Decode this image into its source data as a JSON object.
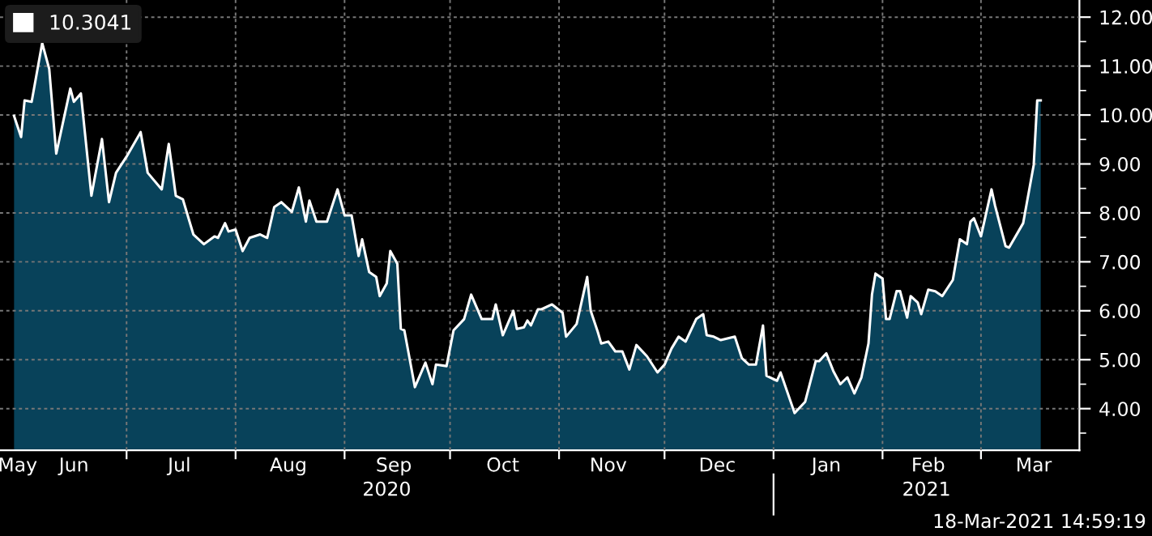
{
  "chart_data": {
    "type": "area",
    "x": [
      "2020-05-30",
      "2020-06-01",
      "2020-06-02",
      "2020-06-04",
      "2020-06-07",
      "2020-06-09",
      "2020-06-11",
      "2020-06-15",
      "2020-06-16",
      "2020-06-18",
      "2020-06-21",
      "2020-06-24",
      "2020-06-26",
      "2020-06-28",
      "2020-07-01",
      "2020-07-05",
      "2020-07-07",
      "2020-07-11",
      "2020-07-13",
      "2020-07-15",
      "2020-07-17",
      "2020-07-20",
      "2020-07-23",
      "2020-07-26",
      "2020-07-27",
      "2020-07-29",
      "2020-07-30",
      "2020-08-01",
      "2020-08-03",
      "2020-08-05",
      "2020-08-08",
      "2020-08-10",
      "2020-08-12",
      "2020-08-14",
      "2020-08-17",
      "2020-08-19",
      "2020-08-21",
      "2020-08-22",
      "2020-08-24",
      "2020-08-27",
      "2020-08-30",
      "2020-09-01",
      "2020-09-03",
      "2020-09-05",
      "2020-09-06",
      "2020-09-08",
      "2020-09-10",
      "2020-09-11",
      "2020-09-13",
      "2020-09-14",
      "2020-09-16",
      "2020-09-17",
      "2020-09-18",
      "2020-09-21",
      "2020-09-24",
      "2020-09-26",
      "2020-09-27",
      "2020-09-30",
      "2020-10-02",
      "2020-10-05",
      "2020-10-07",
      "2020-10-10",
      "2020-10-13",
      "2020-10-14",
      "2020-10-16",
      "2020-10-19",
      "2020-10-20",
      "2020-10-22",
      "2020-10-23",
      "2020-10-24",
      "2020-10-26",
      "2020-10-27",
      "2020-10-30",
      "2020-11-02",
      "2020-11-03",
      "2020-11-06",
      "2020-11-09",
      "2020-11-10",
      "2020-11-12",
      "2020-11-13",
      "2020-11-15",
      "2020-11-17",
      "2020-11-19",
      "2020-11-21",
      "2020-11-23",
      "2020-11-26",
      "2020-11-29",
      "2020-12-01",
      "2020-12-03",
      "2020-12-05",
      "2020-12-07",
      "2020-12-10",
      "2020-12-12",
      "2020-12-13",
      "2020-12-15",
      "2020-12-17",
      "2020-12-21",
      "2020-12-23",
      "2020-12-25",
      "2020-12-27",
      "2020-12-29",
      "2020-12-30",
      "2021-01-02",
      "2021-01-03",
      "2021-01-07",
      "2021-01-10",
      "2021-01-13",
      "2021-01-14",
      "2021-01-16",
      "2021-01-18",
      "2021-01-20",
      "2021-01-22",
      "2021-01-24",
      "2021-01-26",
      "2021-01-28",
      "2021-01-29",
      "2021-01-30",
      "2021-02-01",
      "2021-02-02",
      "2021-02-03",
      "2021-02-05",
      "2021-02-06",
      "2021-02-08",
      "2021-02-09",
      "2021-02-11",
      "2021-02-12",
      "2021-02-14",
      "2021-02-16",
      "2021-02-18",
      "2021-02-21",
      "2021-02-23",
      "2021-02-25",
      "2021-02-26",
      "2021-02-27",
      "2021-03-01",
      "2021-03-04",
      "2021-03-05",
      "2021-03-08",
      "2021-03-09",
      "2021-03-13",
      "2021-03-16",
      "2021-03-17",
      "2021-03-18"
    ],
    "series": [
      {
        "name": "10.3041",
        "color": "#ffffff",
        "values": [
          9.98,
          9.55,
          10.3,
          10.27,
          11.47,
          10.94,
          9.21,
          10.54,
          10.27,
          10.44,
          8.35,
          9.51,
          8.22,
          8.82,
          9.15,
          9.65,
          8.82,
          8.48,
          9.41,
          8.35,
          8.28,
          7.56,
          7.36,
          7.52,
          7.49,
          7.79,
          7.62,
          7.66,
          7.22,
          7.49,
          7.56,
          7.49,
          8.12,
          8.22,
          8.02,
          8.52,
          7.82,
          8.25,
          7.82,
          7.82,
          8.48,
          7.95,
          7.95,
          7.12,
          7.46,
          6.79,
          6.69,
          6.3,
          6.56,
          7.22,
          6.96,
          5.63,
          5.6,
          4.44,
          4.94,
          4.5,
          4.9,
          4.87,
          5.6,
          5.83,
          6.33,
          5.83,
          5.83,
          6.13,
          5.5,
          6.0,
          5.63,
          5.66,
          5.8,
          5.7,
          6.03,
          6.03,
          6.13,
          5.96,
          5.47,
          5.73,
          6.69,
          6.0,
          5.57,
          5.33,
          5.37,
          5.17,
          5.17,
          4.8,
          5.3,
          5.07,
          4.74,
          4.9,
          5.23,
          5.47,
          5.37,
          5.83,
          5.93,
          5.5,
          5.47,
          5.4,
          5.47,
          5.03,
          4.9,
          4.9,
          5.7,
          4.67,
          4.57,
          4.74,
          3.91,
          4.14,
          4.97,
          4.97,
          5.13,
          4.77,
          4.5,
          4.64,
          4.31,
          4.64,
          5.33,
          6.33,
          6.76,
          6.66,
          5.83,
          5.83,
          6.4,
          6.4,
          5.86,
          6.3,
          6.17,
          5.93,
          6.43,
          6.4,
          6.3,
          6.63,
          7.46,
          7.36,
          7.82,
          7.89,
          7.52,
          8.48,
          8.15,
          7.32,
          7.29,
          7.79,
          8.98,
          10.3,
          10.3
        ]
      }
    ],
    "xlim": [
      "2020-05-26",
      "2021-03-29"
    ],
    "xticks": [
      {
        "value": "2020-07-01",
        "label": null
      },
      {
        "value": "2020-08-01",
        "label": null
      },
      {
        "value": "2020-09-01",
        "label": null
      },
      {
        "value": "2020-10-01",
        "label": null
      },
      {
        "value": "2020-11-01",
        "label": null
      },
      {
        "value": "2020-12-01",
        "label": null
      },
      {
        "value": "2021-01-01",
        "label": null
      },
      {
        "value": "2021-02-01",
        "label": null
      },
      {
        "value": "2021-03-01",
        "label": null
      },
      {
        "value": "2020-05-31",
        "label": "May"
      },
      {
        "value": "2020-06-16",
        "label": "Jun"
      },
      {
        "value": "2020-07-16",
        "label": "Jul"
      },
      {
        "value": "2020-08-16",
        "label": "Aug"
      },
      {
        "value": "2020-09-15",
        "label": "Sep"
      },
      {
        "value": "2020-10-16",
        "label": "Oct"
      },
      {
        "value": "2020-11-15",
        "label": "Nov"
      },
      {
        "value": "2020-12-16",
        "label": "Dec"
      },
      {
        "value": "2021-01-16",
        "label": "Jan"
      },
      {
        "value": "2021-02-14",
        "label": "Feb"
      },
      {
        "value": "2021-03-16",
        "label": "Mar"
      }
    ],
    "ylim": [
      3.15,
      12.35
    ],
    "yticks": [
      {
        "value": 4,
        "label": "4.00"
      },
      {
        "value": 5,
        "label": "5.00"
      },
      {
        "value": 6,
        "label": "6.00"
      },
      {
        "value": 7,
        "label": "7.00"
      },
      {
        "value": 8,
        "label": "8.00"
      },
      {
        "value": 9,
        "label": "9.00"
      },
      {
        "value": 10,
        "label": "10.00"
      },
      {
        "value": 11,
        "label": "11.00"
      },
      {
        "value": 12,
        "label": "12.00"
      },
      {
        "value": 3.5,
        "label": null
      },
      {
        "value": 4.5,
        "label": null
      },
      {
        "value": 5.5,
        "label": null
      },
      {
        "value": 6.5,
        "label": null
      },
      {
        "value": 7.5,
        "label": null
      },
      {
        "value": 8.5,
        "label": null
      },
      {
        "value": 9.5,
        "label": null
      },
      {
        "value": 10.5,
        "label": null
      },
      {
        "value": 11.5,
        "label": null
      }
    ],
    "annotations": [
      "2020",
      "2021",
      "18-Mar-2021 14:59:19"
    ],
    "grid": true,
    "legend": "top left"
  }
}
